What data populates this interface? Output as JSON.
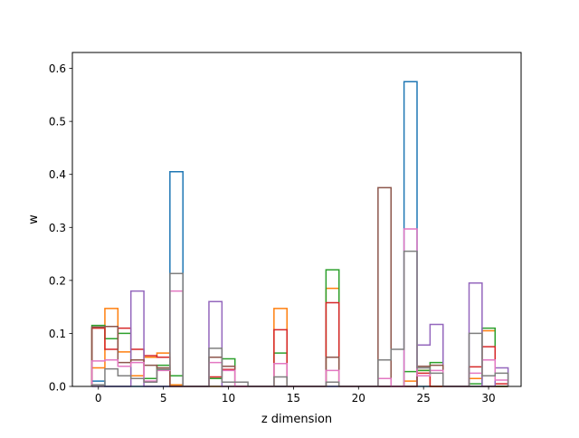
{
  "chart_data": {
    "type": "step-histogram",
    "title": "",
    "xlabel": "z dimension",
    "ylabel": "w",
    "xlim": [
      -2.0,
      32.5
    ],
    "ylim": [
      0,
      0.63
    ],
    "xticks": [
      0,
      5,
      10,
      15,
      20,
      25,
      30
    ],
    "yticks": [
      0.0,
      0.1,
      0.2,
      0.3,
      0.4,
      0.5,
      0.6
    ],
    "x": [
      0,
      1,
      2,
      3,
      4,
      5,
      6,
      7,
      8,
      9,
      10,
      11,
      12,
      13,
      14,
      15,
      16,
      17,
      18,
      19,
      20,
      21,
      22,
      23,
      24,
      25,
      26,
      27,
      28,
      29,
      30,
      31
    ],
    "bin_width": 1,
    "grid": false,
    "legend": "none",
    "series": [
      {
        "color": "#1f77b4",
        "values": [
          0.01,
          0.0,
          0.0,
          0.0,
          0.0,
          0.0,
          0.405,
          0.0,
          0.0,
          0.0,
          0.0,
          0.0,
          0.0,
          0.0,
          0.0,
          0.0,
          0.0,
          0.0,
          0.0,
          0.0,
          0.0,
          0.0,
          0.0,
          0.0,
          0.575,
          0.0,
          0.0,
          0.0,
          0.0,
          0.0,
          0.0,
          0.0
        ]
      },
      {
        "color": "#ff7f0e",
        "values": [
          0.035,
          0.147,
          0.065,
          0.02,
          0.055,
          0.063,
          0.003,
          0.0,
          0.0,
          0.0,
          0.0,
          0.0,
          0.0,
          0.0,
          0.147,
          0.0,
          0.0,
          0.0,
          0.185,
          0.0,
          0.0,
          0.0,
          0.0,
          0.0,
          0.01,
          0.03,
          0.0,
          0.0,
          0.0,
          0.015,
          0.105,
          0.0
        ]
      },
      {
        "color": "#2ca02c",
        "values": [
          0.115,
          0.09,
          0.1,
          0.015,
          0.015,
          0.04,
          0.02,
          0.0,
          0.0,
          0.015,
          0.052,
          0.0,
          0.0,
          0.0,
          0.063,
          0.0,
          0.0,
          0.0,
          0.22,
          0.0,
          0.0,
          0.0,
          0.0,
          0.0,
          0.028,
          0.03,
          0.045,
          0.0,
          0.0,
          0.005,
          0.11,
          0.0
        ]
      },
      {
        "color": "#d62728",
        "values": [
          0.11,
          0.07,
          0.11,
          0.07,
          0.058,
          0.055,
          0.0,
          0.0,
          0.0,
          0.018,
          0.032,
          0.0,
          0.0,
          0.0,
          0.107,
          0.0,
          0.0,
          0.0,
          0.158,
          0.0,
          0.0,
          0.0,
          0.0,
          0.0,
          0.0,
          0.025,
          0.0,
          0.0,
          0.0,
          0.037,
          0.075,
          0.005
        ]
      },
      {
        "color": "#9467bd",
        "values": [
          0.0,
          0.0,
          0.0,
          0.18,
          0.0,
          0.0,
          0.0,
          0.0,
          0.0,
          0.16,
          0.0,
          0.0,
          0.0,
          0.0,
          0.0,
          0.0,
          0.0,
          0.0,
          0.0,
          0.0,
          0.0,
          0.0,
          0.0,
          0.0,
          0.0,
          0.078,
          0.117,
          0.0,
          0.0,
          0.195,
          0.0,
          0.035
        ]
      },
      {
        "color": "#8c564b",
        "values": [
          0.112,
          0.113,
          0.045,
          0.05,
          0.04,
          0.035,
          0.0,
          0.0,
          0.0,
          0.055,
          0.038,
          0.0,
          0.0,
          0.0,
          0.0,
          0.0,
          0.0,
          0.0,
          0.055,
          0.0,
          0.0,
          0.0,
          0.375,
          0.0,
          0.0,
          0.038,
          0.04,
          0.0,
          0.0,
          0.0,
          0.0,
          0.0
        ]
      },
      {
        "color": "#e377c2",
        "values": [
          0.048,
          0.05,
          0.038,
          0.045,
          0.01,
          0.03,
          0.18,
          0.0,
          0.0,
          0.045,
          0.03,
          0.0,
          0.0,
          0.0,
          0.043,
          0.0,
          0.0,
          0.0,
          0.03,
          0.0,
          0.0,
          0.0,
          0.015,
          0.0,
          0.297,
          0.02,
          0.03,
          0.0,
          0.0,
          0.025,
          0.05,
          0.012
        ]
      },
      {
        "color": "#7f7f7f",
        "values": [
          0.003,
          0.033,
          0.02,
          0.015,
          0.008,
          0.032,
          0.213,
          0.0,
          0.0,
          0.072,
          0.008,
          0.008,
          0.0,
          0.0,
          0.018,
          0.0,
          0.0,
          0.0,
          0.008,
          0.0,
          0.0,
          0.0,
          0.05,
          0.07,
          0.255,
          0.035,
          0.025,
          0.0,
          0.0,
          0.1,
          0.02,
          0.025
        ]
      }
    ]
  }
}
